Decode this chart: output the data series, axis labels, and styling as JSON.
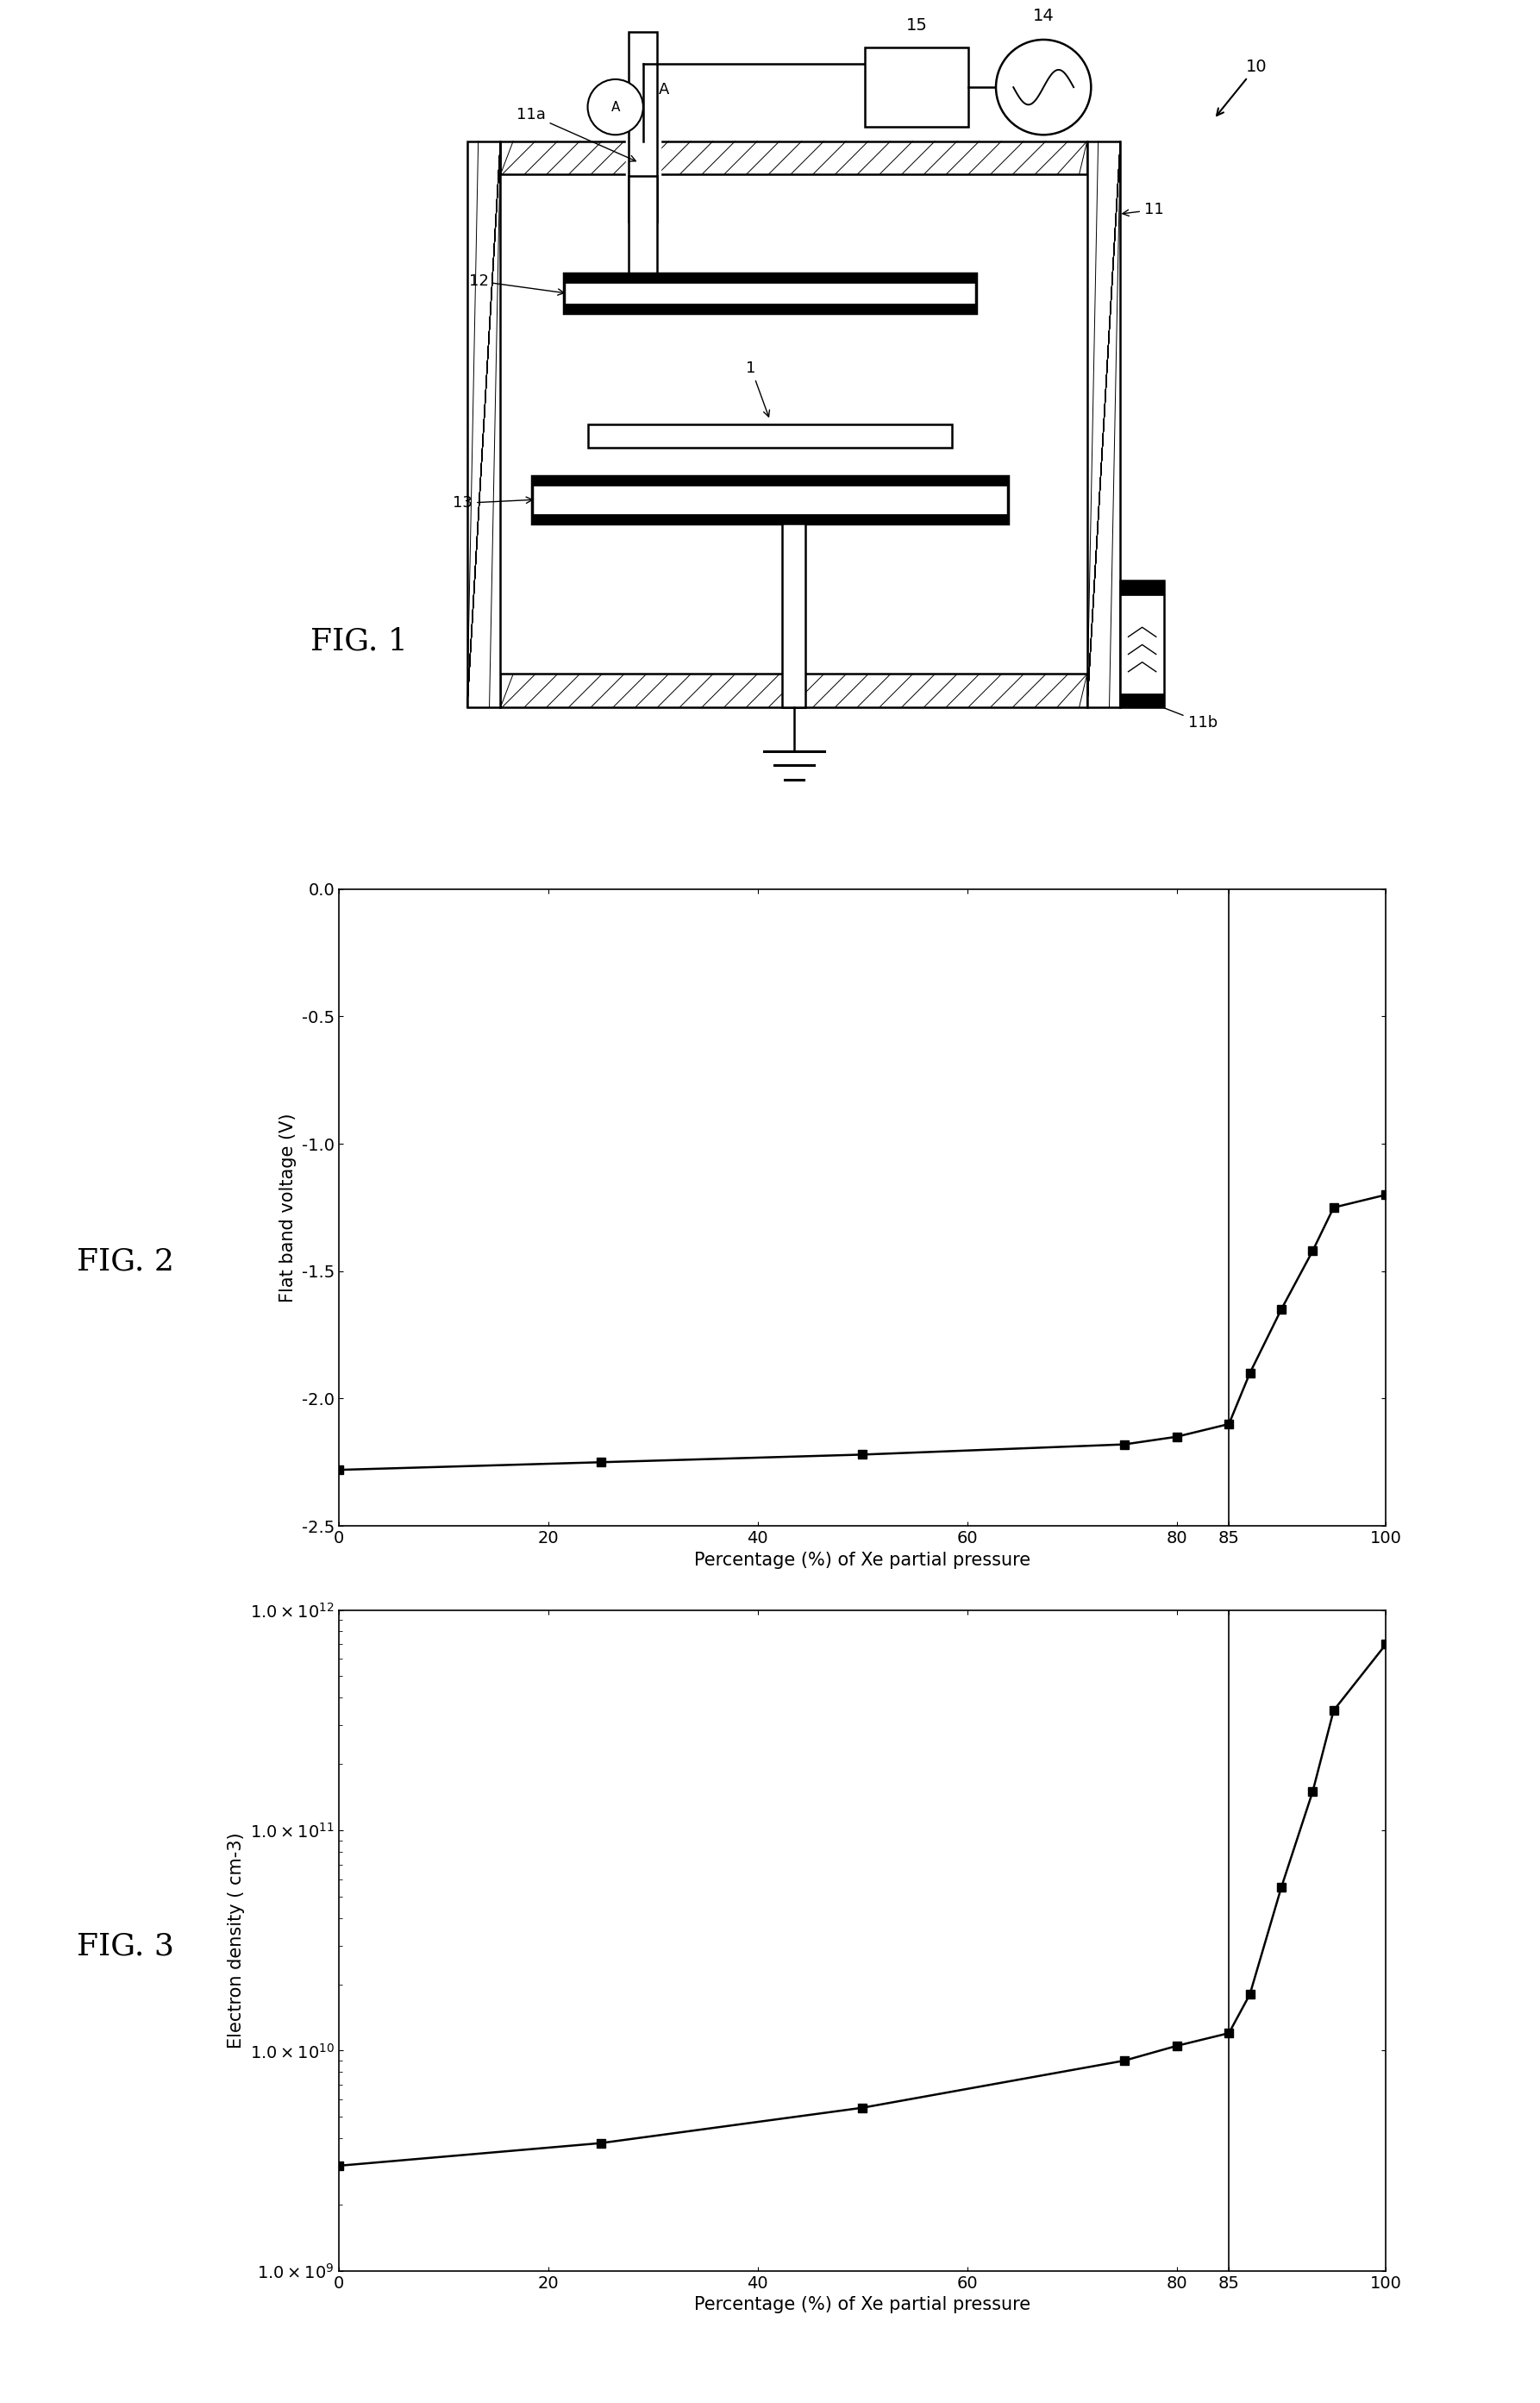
{
  "fig2": {
    "x": [
      0,
      25,
      50,
      75,
      80,
      85,
      87,
      90,
      93,
      95,
      100
    ],
    "y": [
      -2.28,
      -2.25,
      -2.22,
      -2.18,
      -2.15,
      -2.1,
      -1.9,
      -1.65,
      -1.42,
      -1.25,
      -1.2
    ],
    "xlim": [
      0,
      100
    ],
    "ylim": [
      -2.5,
      0.0
    ],
    "yticks": [
      0.0,
      -0.5,
      -1.0,
      -1.5,
      -2.0,
      -2.5
    ],
    "ytick_labels": [
      "0.0",
      "-0.5",
      "-1.0",
      "-1.5",
      "-2.0",
      "-2.5"
    ],
    "xlabel": "Percentage (%) of Xe partial pressure",
    "ylabel": "Flat band voltage (V)",
    "vline_x": 85
  },
  "fig3": {
    "x": [
      0,
      25,
      50,
      75,
      80,
      85,
      87,
      90,
      93,
      95,
      100
    ],
    "y": [
      3000000000.0,
      3800000000.0,
      5500000000.0,
      9000000000.0,
      10500000000.0,
      12000000000.0,
      18000000000.0,
      55000000000.0,
      150000000000.0,
      350000000000.0,
      700000000000.0
    ],
    "xlim": [
      0,
      100
    ],
    "ylim_log": [
      1000000000.0,
      1000000000000.0
    ],
    "xlabel": "Percentage (%) of Xe partial pressure",
    "ylabel": "Electron density ( cm-3)",
    "vline_x": 85
  },
  "background_color": "#ffffff",
  "line_color": "#000000",
  "marker": "s",
  "markersize": 7,
  "linewidth": 1.8,
  "axis_label_fontsize": 15,
  "tick_fontsize": 14,
  "fig_label_fontsize": 26
}
